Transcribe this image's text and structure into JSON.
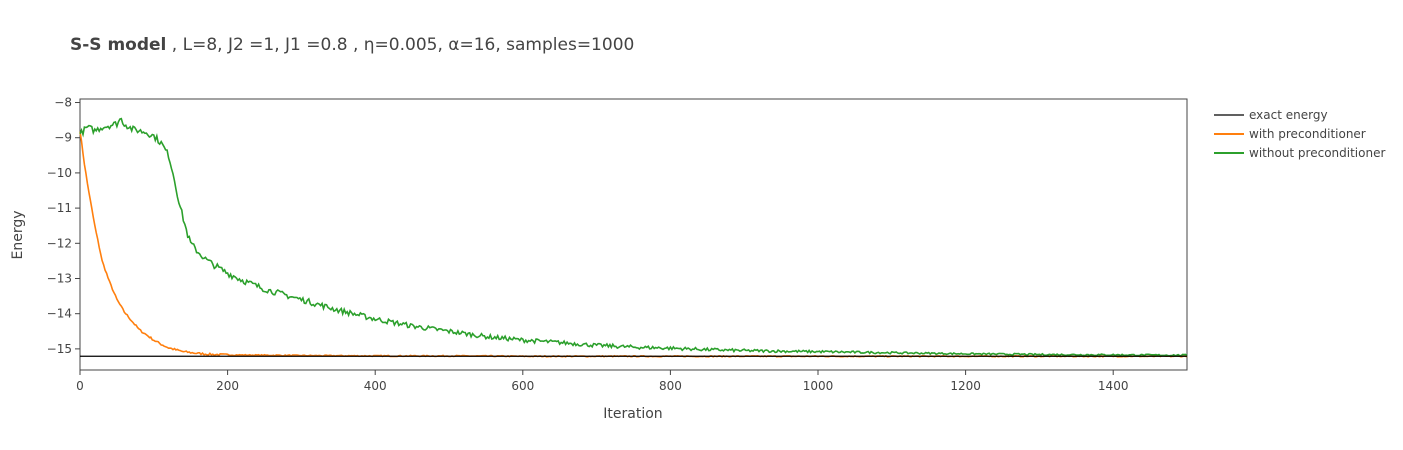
{
  "chart_data": {
    "type": "line",
    "title_bold": "S-S model",
    "title_rest": " , L=8, J2 =1, J1 =0.8 , η=0.005, α=16, samples=1000",
    "xlabel": "Iteration",
    "ylabel": "Energy",
    "xlim": [
      0,
      1500
    ],
    "ylim": [
      -15.6,
      -7.9
    ],
    "x_ticks": [
      0,
      200,
      400,
      600,
      800,
      1000,
      1200,
      1400
    ],
    "x_tick_labels": [
      "0",
      "200",
      "400",
      "600",
      "800",
      "1000",
      "1200",
      "1400"
    ],
    "y_ticks": [
      -8,
      -9,
      -10,
      -11,
      -12,
      -13,
      -14,
      -15
    ],
    "y_tick_labels": [
      "−8",
      "−9",
      "−10",
      "−11",
      "−12",
      "−13",
      "−14",
      "−15"
    ],
    "legend_position": "right",
    "series": [
      {
        "name": "exact energy",
        "color": "#000000",
        "x": [
          0,
          1500
        ],
        "y": [
          -15.21,
          -15.21
        ]
      },
      {
        "name": "with preconditioner",
        "color": "#ff7f0e",
        "x": [
          0,
          5,
          10,
          15,
          20,
          25,
          30,
          40,
          50,
          60,
          70,
          80,
          90,
          100,
          110,
          120,
          140,
          160,
          180,
          200,
          250,
          300,
          400,
          500,
          600,
          800,
          1000,
          1200,
          1400,
          1500
        ],
        "y": [
          -8.8,
          -9.6,
          -10.3,
          -10.9,
          -11.5,
          -12.0,
          -12.5,
          -13.1,
          -13.6,
          -13.95,
          -14.2,
          -14.45,
          -14.6,
          -14.75,
          -14.87,
          -14.97,
          -15.08,
          -15.13,
          -15.16,
          -15.17,
          -15.18,
          -15.19,
          -15.2,
          -15.2,
          -15.21,
          -15.21,
          -15.21,
          -15.21,
          -15.21,
          -15.21
        ]
      },
      {
        "name": "without preconditioner",
        "color": "#2ca02c",
        "x": [
          0,
          10,
          20,
          30,
          40,
          50,
          55,
          60,
          70,
          80,
          90,
          100,
          110,
          120,
          125,
          130,
          135,
          140,
          145,
          150,
          160,
          170,
          180,
          200,
          220,
          250,
          300,
          350,
          400,
          450,
          500,
          550,
          600,
          650,
          700,
          750,
          800,
          850,
          900,
          1000,
          1100,
          1200,
          1300,
          1400,
          1500
        ],
        "y": [
          -8.9,
          -8.7,
          -8.8,
          -8.7,
          -8.65,
          -8.6,
          -8.45,
          -8.6,
          -8.75,
          -8.8,
          -8.85,
          -8.95,
          -9.15,
          -9.5,
          -9.9,
          -10.4,
          -10.9,
          -11.3,
          -11.7,
          -12.0,
          -12.25,
          -12.45,
          -12.6,
          -12.85,
          -13.05,
          -13.3,
          -13.6,
          -13.9,
          -14.15,
          -14.35,
          -14.5,
          -14.65,
          -14.75,
          -14.82,
          -14.9,
          -14.95,
          -14.98,
          -15.02,
          -15.05,
          -15.08,
          -15.11,
          -15.14,
          -15.16,
          -15.17,
          -15.18
        ]
      }
    ]
  }
}
